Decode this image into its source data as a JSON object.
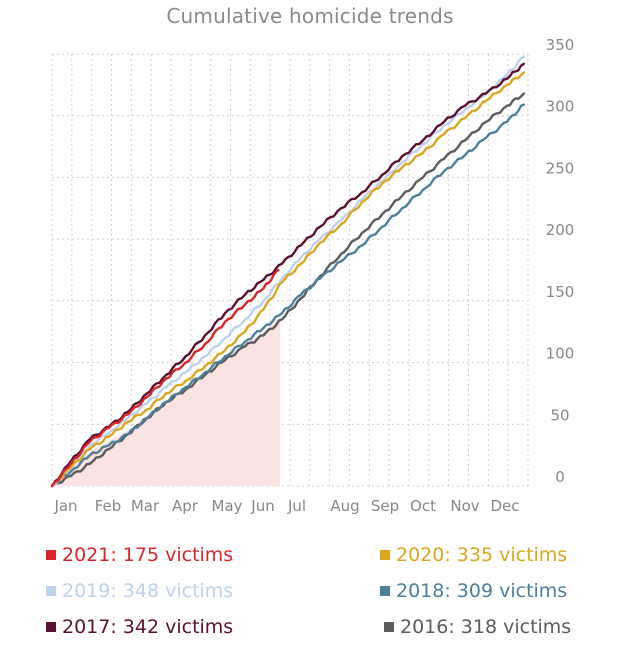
{
  "chart_data": {
    "type": "line",
    "title": "Cumulative homicide trends",
    "xlabel": "",
    "ylabel": "",
    "x_ticks": [
      "Jan",
      "Feb",
      "Mar",
      "Apr",
      "May",
      "Jun",
      "Jul",
      "Aug",
      "Sep",
      "Oct",
      "Nov",
      "Dec"
    ],
    "y_ticks": [
      0,
      50,
      100,
      150,
      200,
      250,
      300,
      350
    ],
    "ylim": [
      0,
      350
    ],
    "y_axis_position": "right",
    "grid": true,
    "legend_position": "bottom",
    "highlight_area": {
      "series": "2021",
      "x_range": [
        "Jan",
        "Jul"
      ],
      "color": "#fbe3e3"
    },
    "series": [
      {
        "name": "2021",
        "legend": "2021: 175 victims",
        "color": "#d7262a",
        "points": [
          [
            0,
            0
          ],
          [
            0.5,
            18
          ],
          [
            1,
            36
          ],
          [
            1.5,
            47
          ],
          [
            2,
            58
          ],
          [
            2.5,
            72
          ],
          [
            3,
            87
          ],
          [
            3.5,
            100
          ],
          [
            4,
            115
          ],
          [
            4.5,
            133
          ],
          [
            5,
            147
          ],
          [
            5.5,
            160
          ],
          [
            5.9,
            175
          ]
        ]
      },
      {
        "name": "2020",
        "legend": "2020: 335 victims",
        "color": "#d9a820",
        "points": [
          [
            0,
            0
          ],
          [
            0.5,
            15
          ],
          [
            1,
            30
          ],
          [
            1.5,
            40
          ],
          [
            2,
            52
          ],
          [
            2.5,
            62
          ],
          [
            3,
            75
          ],
          [
            3.5,
            85
          ],
          [
            4,
            97
          ],
          [
            4.5,
            110
          ],
          [
            5,
            125
          ],
          [
            5.5,
            143
          ],
          [
            6,
            165
          ],
          [
            6.5,
            180
          ],
          [
            7,
            197
          ],
          [
            7.5,
            212
          ],
          [
            8,
            230
          ],
          [
            8.5,
            245
          ],
          [
            9,
            258
          ],
          [
            9.5,
            270
          ],
          [
            10,
            285
          ],
          [
            10.5,
            298
          ],
          [
            11,
            312
          ],
          [
            11.5,
            325
          ],
          [
            11.9,
            335
          ]
        ]
      },
      {
        "name": "2019",
        "legend": "2019: 348 victims",
        "color": "#bfd2ec",
        "points": [
          [
            0,
            0
          ],
          [
            0.5,
            16
          ],
          [
            1,
            33
          ],
          [
            1.5,
            43
          ],
          [
            2,
            55
          ],
          [
            2.5,
            67
          ],
          [
            3,
            80
          ],
          [
            3.5,
            92
          ],
          [
            4,
            105
          ],
          [
            4.5,
            120
          ],
          [
            5,
            135
          ],
          [
            5.5,
            150
          ],
          [
            6,
            168
          ],
          [
            6.5,
            185
          ],
          [
            7,
            200
          ],
          [
            7.5,
            215
          ],
          [
            8,
            232
          ],
          [
            8.5,
            247
          ],
          [
            9,
            262
          ],
          [
            9.5,
            277
          ],
          [
            10,
            292
          ],
          [
            10.5,
            305
          ],
          [
            11,
            318
          ],
          [
            11.5,
            333
          ],
          [
            11.9,
            348
          ]
        ]
      },
      {
        "name": "2018",
        "legend": "2018: 309 victims",
        "color": "#4e8199",
        "points": [
          [
            0,
            0
          ],
          [
            0.5,
            12
          ],
          [
            1,
            25
          ],
          [
            1.5,
            33
          ],
          [
            2,
            42
          ],
          [
            2.5,
            55
          ],
          [
            3,
            68
          ],
          [
            3.5,
            80
          ],
          [
            4,
            92
          ],
          [
            4.5,
            105
          ],
          [
            5,
            117
          ],
          [
            5.5,
            128
          ],
          [
            6,
            140
          ],
          [
            6.5,
            155
          ],
          [
            7,
            168
          ],
          [
            7.5,
            182
          ],
          [
            8,
            195
          ],
          [
            8.5,
            210
          ],
          [
            9,
            225
          ],
          [
            9.5,
            240
          ],
          [
            10,
            255
          ],
          [
            10.5,
            268
          ],
          [
            11,
            282
          ],
          [
            11.5,
            295
          ],
          [
            11.9,
            309
          ]
        ]
      },
      {
        "name": "2017",
        "legend": "2017: 342 victims",
        "color": "#5a1130",
        "points": [
          [
            0,
            0
          ],
          [
            0.5,
            20
          ],
          [
            1,
            38
          ],
          [
            1.5,
            48
          ],
          [
            2,
            60
          ],
          [
            2.5,
            75
          ],
          [
            3,
            90
          ],
          [
            3.5,
            105
          ],
          [
            4,
            122
          ],
          [
            4.5,
            140
          ],
          [
            5,
            155
          ],
          [
            5.5,
            167
          ],
          [
            6,
            180
          ],
          [
            6.5,
            195
          ],
          [
            7,
            210
          ],
          [
            7.5,
            225
          ],
          [
            8,
            238
          ],
          [
            8.5,
            252
          ],
          [
            9,
            267
          ],
          [
            9.5,
            280
          ],
          [
            10,
            295
          ],
          [
            10.5,
            308
          ],
          [
            11,
            318
          ],
          [
            11.5,
            330
          ],
          [
            11.9,
            342
          ]
        ]
      },
      {
        "name": "2016",
        "legend": "2016: 318 victims",
        "color": "#5c5c5c",
        "points": [
          [
            0,
            0
          ],
          [
            0.5,
            8
          ],
          [
            1,
            18
          ],
          [
            1.5,
            30
          ],
          [
            2,
            42
          ],
          [
            2.5,
            55
          ],
          [
            3,
            68
          ],
          [
            3.5,
            78
          ],
          [
            4,
            90
          ],
          [
            4.5,
            102
          ],
          [
            5,
            113
          ],
          [
            5.5,
            122
          ],
          [
            6,
            135
          ],
          [
            6.5,
            152
          ],
          [
            7,
            170
          ],
          [
            7.5,
            188
          ],
          [
            8,
            205
          ],
          [
            8.5,
            220
          ],
          [
            9,
            235
          ],
          [
            9.5,
            250
          ],
          [
            10,
            265
          ],
          [
            10.5,
            280
          ],
          [
            11,
            295
          ],
          [
            11.5,
            308
          ],
          [
            11.9,
            318
          ]
        ]
      }
    ]
  }
}
